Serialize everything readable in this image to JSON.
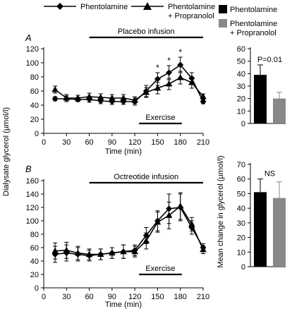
{
  "legend_top": {
    "series1": "Phentolamine",
    "series2_line1": "Phentolamine",
    "series2_line2": "+ Propranolol"
  },
  "legend_right": {
    "series1": "Phentolamine",
    "series2_line1": "Phentolamine",
    "series2_line2": "+ Propranolol"
  },
  "shared_ylabel": "Dialysate glycerol (µmol/l)",
  "right_ylabel": "Mean change in glycerol (µmol/l)",
  "colors": {
    "black": "#000000",
    "grey": "#888888"
  },
  "chart_data": [
    {
      "id": "panel_A",
      "type": "line",
      "panel_label": "A",
      "top_annotation": "Placebo infusion",
      "bottom_annotation": "Exercise",
      "xlabel": "Time (min)",
      "xlim": [
        0,
        210
      ],
      "ylim": [
        0,
        120
      ],
      "xticks": [
        0,
        30,
        60,
        90,
        120,
        150,
        180,
        210
      ],
      "yticks": [
        0,
        20,
        40,
        60,
        80,
        100,
        120
      ],
      "infusion_range": [
        60,
        210
      ],
      "exercise_range": [
        120,
        180
      ],
      "x": [
        15,
        30,
        45,
        60,
        75,
        90,
        105,
        120,
        135,
        150,
        165,
        180,
        195,
        210
      ],
      "series": [
        {
          "name": "Phentolamine",
          "marker": "diamond",
          "values": [
            49,
            49,
            48,
            48,
            46,
            45,
            45,
            45,
            60,
            77,
            86,
            97,
            78,
            45
          ],
          "errors": [
            3,
            4,
            3,
            4,
            4,
            4,
            4,
            5,
            8,
            9,
            10,
            11,
            8,
            3
          ]
        },
        {
          "name": "Phentolamine + Propranolol",
          "marker": "triangle",
          "values": [
            62,
            50,
            50,
            52,
            51,
            50,
            50,
            47,
            58,
            64,
            70,
            79,
            72,
            52
          ],
          "errors": [
            5,
            5,
            4,
            5,
            5,
            5,
            5,
            5,
            7,
            8,
            8,
            9,
            8,
            4
          ]
        }
      ],
      "significance_marks": {
        "x": [
          150,
          165,
          180
        ],
        "label": "*"
      }
    },
    {
      "id": "panel_B",
      "type": "line",
      "panel_label": "B",
      "top_annotation": "Octreotide infusion",
      "bottom_annotation": "Exercise",
      "xlabel": "Time (min)",
      "xlim": [
        0,
        210
      ],
      "ylim": [
        0,
        160
      ],
      "xticks": [
        0,
        30,
        60,
        90,
        120,
        150,
        180,
        210
      ],
      "yticks": [
        0,
        20,
        40,
        60,
        80,
        100,
        120,
        140,
        160
      ],
      "infusion_range": [
        60,
        210
      ],
      "exercise_range": [
        120,
        180
      ],
      "x": [
        15,
        30,
        45,
        60,
        75,
        90,
        105,
        120,
        135,
        150,
        165,
        180,
        195,
        210
      ],
      "series": [
        {
          "name": "Phentolamine",
          "marker": "diamond",
          "values": [
            50,
            52,
            50,
            48,
            50,
            52,
            54,
            56,
            78,
            100,
            118,
            120,
            90,
            60
          ],
          "errors": [
            12,
            12,
            10,
            8,
            8,
            8,
            10,
            8,
            12,
            15,
            22,
            20,
            10,
            6
          ]
        },
        {
          "name": "Phentolamine + Propranolol",
          "marker": "triangle",
          "values": [
            55,
            56,
            52,
            50,
            50,
            52,
            54,
            54,
            70,
            98,
            108,
            122,
            95,
            57
          ],
          "errors": [
            12,
            12,
            10,
            8,
            8,
            8,
            10,
            8,
            12,
            15,
            20,
            20,
            10,
            6
          ]
        }
      ]
    },
    {
      "id": "bar_top",
      "type": "bar",
      "ylim": [
        0,
        60
      ],
      "yticks": [
        0,
        10,
        20,
        30,
        40,
        50,
        60
      ],
      "categories": [
        "Phentolamine",
        "Phentolamine + Propranolol"
      ],
      "values": [
        39,
        20
      ],
      "errors": [
        8,
        5
      ],
      "colors": [
        "#000000",
        "#888888"
      ],
      "annotation": "P=0.01"
    },
    {
      "id": "bar_bottom",
      "type": "bar",
      "ylim": [
        0,
        70
      ],
      "yticks": [
        0,
        10,
        20,
        30,
        40,
        50,
        60,
        70
      ],
      "categories": [
        "Phentolamine",
        "Phentolamine + Propranolol"
      ],
      "values": [
        51,
        47
      ],
      "errors": [
        9,
        11
      ],
      "colors": [
        "#000000",
        "#888888"
      ],
      "annotation": "NS"
    }
  ]
}
